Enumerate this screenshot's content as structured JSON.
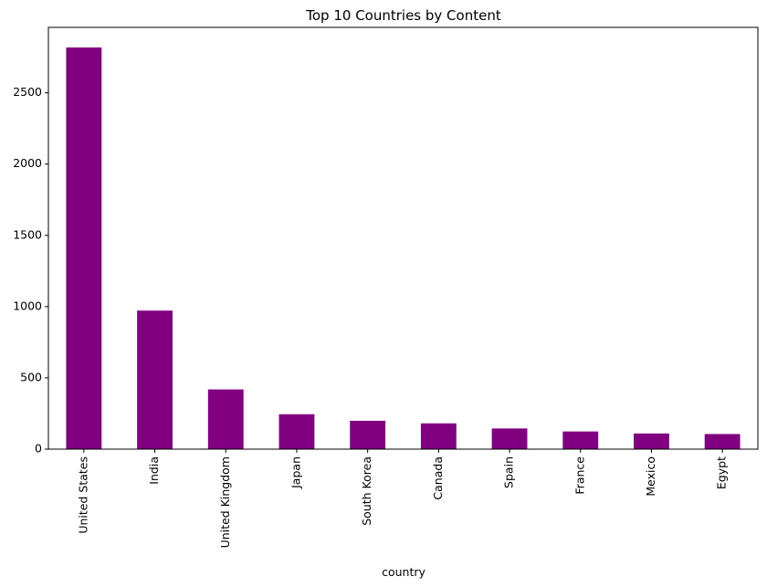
{
  "chart_data": {
    "type": "bar",
    "title": "Top 10 Countries by Content",
    "xlabel": "country",
    "ylabel": "",
    "categories": [
      "United States",
      "India",
      "United Kingdom",
      "Japan",
      "South Korea",
      "Canada",
      "Spain",
      "France",
      "Mexico",
      "Egypt"
    ],
    "values": [
      2818,
      972,
      419,
      245,
      199,
      181,
      145,
      124,
      110,
      106
    ],
    "ylim": [
      0,
      2959
    ],
    "yticks": [
      0,
      500,
      1000,
      1500,
      2000,
      2500
    ],
    "bar_color": "#800080",
    "grid": false,
    "legend": "none"
  }
}
